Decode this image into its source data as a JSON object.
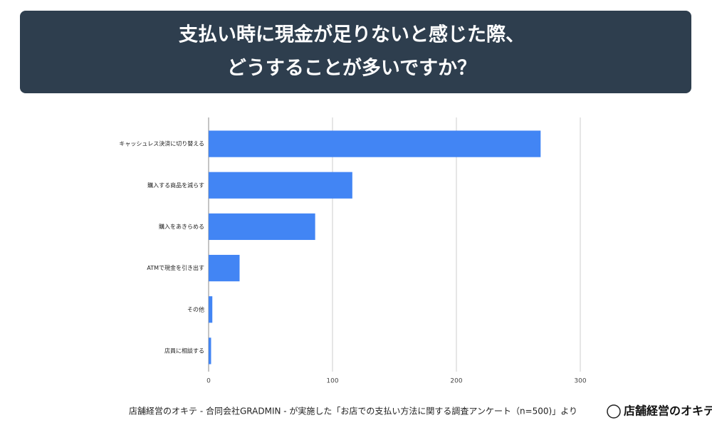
{
  "chart_data": {
    "type": "bar",
    "orientation": "horizontal",
    "title": [
      "支払い時に現金が足りないと感じた際、",
      "どうすることが多いですか？"
    ],
    "categories": [
      "キャッシュレス決済に切り替える",
      "購入する商品を減らす",
      "購入をあきらめる",
      "ATMで現金を引き出す",
      "その他",
      "店員に相談する"
    ],
    "values": [
      268,
      116,
      86,
      25,
      3,
      2
    ],
    "color": "#4285f4",
    "xlim": [
      0,
      300
    ],
    "xticks": [
      0,
      100,
      200,
      300
    ],
    "grid": true,
    "source": "店舗経営のオキテ - 合同会社GRADMIN - が実施した「お店での支払い方法に関する調査アンケート（n=500)」より",
    "logo": "店舗経営のオキテ"
  }
}
